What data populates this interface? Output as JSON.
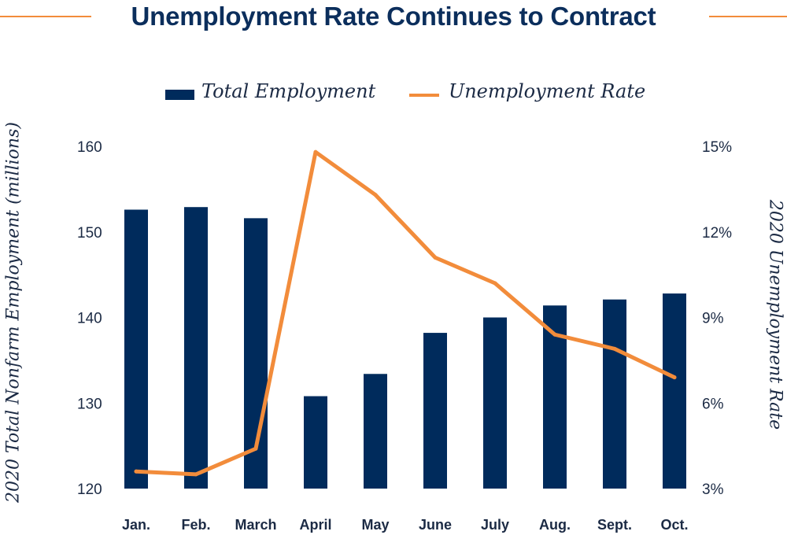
{
  "chart_data": {
    "type": "bar",
    "title": "Unemployment Rate Continues to Contract",
    "categories": [
      "Jan.",
      "Feb.",
      "March",
      "April",
      "May",
      "June",
      "July",
      "Aug.",
      "Sept.",
      "Oct."
    ],
    "series": [
      {
        "name": "Total Employment",
        "type": "bar",
        "axis": "left",
        "values": [
          152.6,
          152.9,
          151.6,
          130.8,
          133.4,
          138.2,
          140.0,
          141.4,
          142.1,
          142.8
        ]
      },
      {
        "name": "Unemployment Rate",
        "type": "line",
        "axis": "right",
        "values": [
          3.6,
          3.5,
          4.4,
          14.8,
          13.3,
          11.1,
          10.2,
          8.4,
          7.9,
          6.9
        ]
      }
    ],
    "ylabel": "2020 Total Nonfarm Employment (millions)",
    "y2label": "2020 Unemployment Rate",
    "ylim": [
      120,
      160
    ],
    "yticks": [
      "160",
      "150",
      "140",
      "130",
      "120"
    ],
    "y2lim": [
      3,
      15
    ],
    "y2ticks": [
      "15%",
      "12%",
      "9%",
      "6%",
      "3%"
    ],
    "legend_position": "top-center",
    "grid": false,
    "colors": {
      "bar": "#002b5c",
      "line": "#f28c3b",
      "title": "#0b2e5c",
      "title_rule": "#f28c3b"
    }
  }
}
